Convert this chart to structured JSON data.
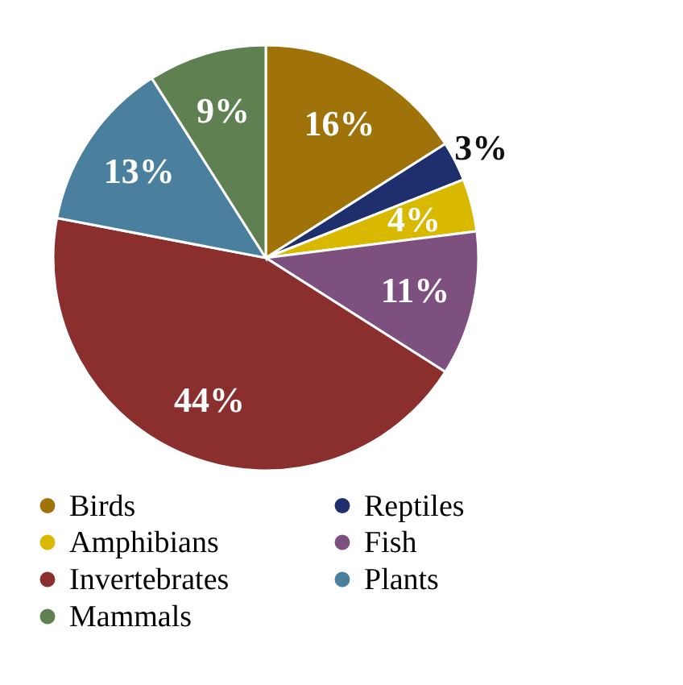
{
  "chart_data": {
    "type": "pie",
    "categories": [
      "Birds",
      "Reptiles",
      "Amphibians",
      "Fish",
      "Invertebrates",
      "Plants",
      "Mammals"
    ],
    "values": [
      16,
      3,
      4,
      11,
      44,
      13,
      9
    ],
    "value_labels": [
      "16%",
      "3%",
      "4%",
      "11%",
      "44%",
      "13%",
      "9%"
    ],
    "colors": [
      "#a0720a",
      "#1f2f6e",
      "#d9b800",
      "#7d5080",
      "#8b2e2e",
      "#4a7f9e",
      "#5f8050"
    ],
    "legend": "bottom"
  }
}
